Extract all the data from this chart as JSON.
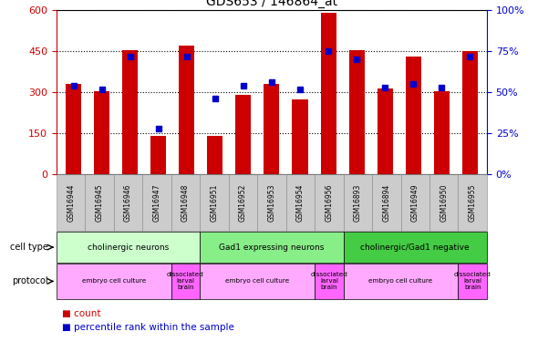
{
  "title": "GDS653 / 146864_at",
  "samples": [
    "GSM16944",
    "GSM16945",
    "GSM16946",
    "GSM16947",
    "GSM16948",
    "GSM16951",
    "GSM16952",
    "GSM16953",
    "GSM16954",
    "GSM16956",
    "GSM16893",
    "GSM16894",
    "GSM16949",
    "GSM16950",
    "GSM16955"
  ],
  "counts": [
    330,
    305,
    455,
    140,
    470,
    140,
    290,
    330,
    275,
    590,
    455,
    315,
    430,
    305,
    450
  ],
  "percentiles": [
    54,
    52,
    72,
    28,
    72,
    46,
    54,
    56,
    52,
    75,
    70,
    53,
    55,
    53,
    72
  ],
  "bar_color": "#cc0000",
  "dot_color": "#0000cc",
  "ylim_left": [
    0,
    600
  ],
  "ylim_right": [
    0,
    100
  ],
  "yticks_left": [
    0,
    150,
    300,
    450,
    600
  ],
  "yticks_right": [
    0,
    25,
    50,
    75,
    100
  ],
  "ytick_labels_left": [
    "0",
    "150",
    "300",
    "450",
    "600"
  ],
  "ytick_labels_right": [
    "0%",
    "25%",
    "50%",
    "75%",
    "100%"
  ],
  "cell_type_groups": [
    {
      "label": "cholinergic neurons",
      "start": 0,
      "end": 4,
      "color": "#ccffcc"
    },
    {
      "label": "Gad1 expressing neurons",
      "start": 5,
      "end": 9,
      "color": "#88ee88"
    },
    {
      "label": "cholinergic/Gad1 negative",
      "start": 10,
      "end": 14,
      "color": "#44cc44"
    }
  ],
  "protocol_groups": [
    {
      "label": "embryo cell culture",
      "start": 0,
      "end": 3,
      "color": "#ffaaff"
    },
    {
      "label": "dissociated\nlarval\nbrain",
      "start": 4,
      "end": 4,
      "color": "#ff66ff"
    },
    {
      "label": "embryo cell culture",
      "start": 5,
      "end": 8,
      "color": "#ffaaff"
    },
    {
      "label": "dissociated\nlarval\nbrain",
      "start": 9,
      "end": 9,
      "color": "#ff66ff"
    },
    {
      "label": "embryo cell culture",
      "start": 10,
      "end": 13,
      "color": "#ffaaff"
    },
    {
      "label": "dissociated\nlarval\nbrain",
      "start": 14,
      "end": 14,
      "color": "#ff66ff"
    }
  ],
  "bg_color": "#ffffff",
  "axis_left_color": "#cc0000",
  "axis_right_color": "#0000cc",
  "sample_bg_color": "#cccccc",
  "sample_edge_color": "#888888"
}
